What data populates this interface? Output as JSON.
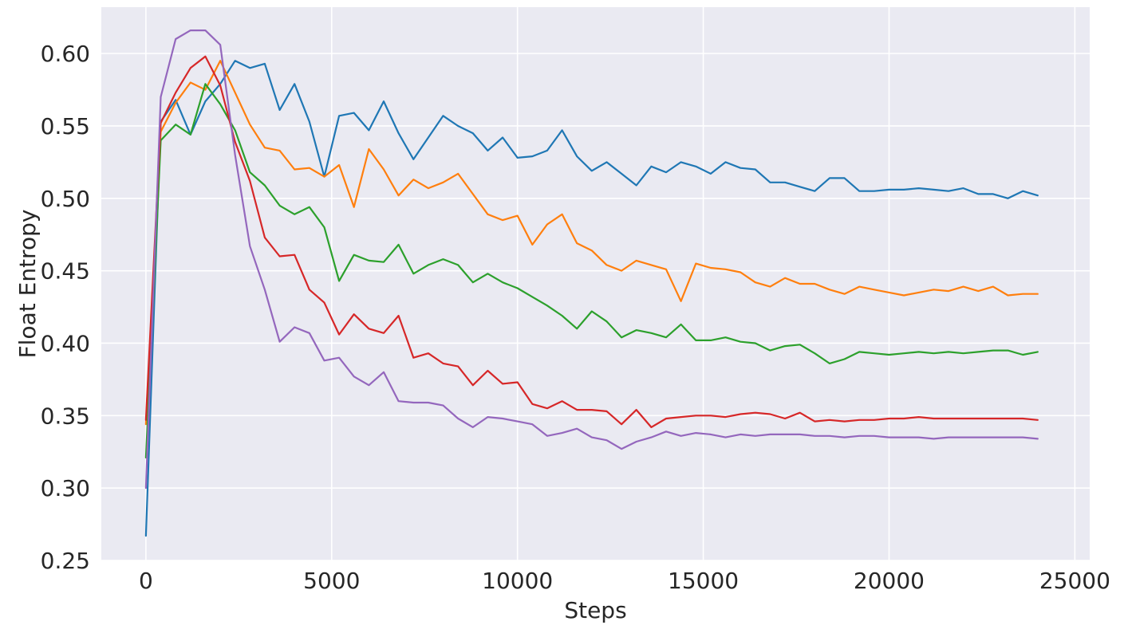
{
  "chart_data": {
    "type": "line",
    "xlabel": "Steps",
    "ylabel": "Float Entropy",
    "xlim": [
      -1200,
      25400
    ],
    "ylim": [
      0.25,
      0.632
    ],
    "xticks": [
      0,
      5000,
      10000,
      15000,
      20000,
      25000
    ],
    "xtick_labels": [
      "0",
      "5000",
      "10000",
      "15000",
      "20000",
      "25000"
    ],
    "yticks": [
      0.25,
      0.3,
      0.35,
      0.4,
      0.45,
      0.5,
      0.55,
      0.6
    ],
    "ytick_labels": [
      "0.25",
      "0.30",
      "0.35",
      "0.40",
      "0.45",
      "0.50",
      "0.55",
      "0.60"
    ],
    "grid": true,
    "background": "#eaeaf2",
    "grid_color": "#ffffff",
    "x": [
      0,
      400,
      800,
      1200,
      1600,
      2000,
      2400,
      2800,
      3200,
      3600,
      4000,
      4400,
      4800,
      5200,
      5600,
      6000,
      6400,
      6800,
      7200,
      7600,
      8000,
      8400,
      8800,
      9200,
      9600,
      10000,
      10400,
      10800,
      11200,
      11600,
      12000,
      12400,
      12800,
      13200,
      13600,
      14000,
      14400,
      14800,
      15200,
      15600,
      16000,
      16400,
      16800,
      17200,
      17600,
      18000,
      18400,
      18800,
      19200,
      19600,
      20000,
      20400,
      20800,
      21200,
      21600,
      22000,
      22400,
      22800,
      23200,
      23600,
      24000
    ],
    "series": [
      {
        "color": "#1f77b4",
        "values": [
          0.267,
          0.553,
          0.568,
          0.544,
          0.567,
          0.579,
          0.595,
          0.59,
          0.593,
          0.561,
          0.579,
          0.553,
          0.515,
          0.557,
          0.559,
          0.547,
          0.567,
          0.545,
          0.527,
          0.542,
          0.557,
          0.55,
          0.545,
          0.533,
          0.542,
          0.528,
          0.529,
          0.533,
          0.547,
          0.529,
          0.519,
          0.525,
          0.517,
          0.509,
          0.522,
          0.518,
          0.525,
          0.522,
          0.517,
          0.525,
          0.521,
          0.52,
          0.511,
          0.511,
          0.508,
          0.505,
          0.514,
          0.514,
          0.505,
          0.505,
          0.506,
          0.506,
          0.507,
          0.506,
          0.505,
          0.507,
          0.503,
          0.503,
          0.5,
          0.505,
          0.502
        ]
      },
      {
        "color": "#ff7f0e",
        "values": [
          0.344,
          0.546,
          0.566,
          0.58,
          0.575,
          0.595,
          0.573,
          0.551,
          0.535,
          0.533,
          0.52,
          0.521,
          0.515,
          0.523,
          0.494,
          0.534,
          0.52,
          0.502,
          0.513,
          0.507,
          0.511,
          0.517,
          0.503,
          0.489,
          0.485,
          0.488,
          0.468,
          0.482,
          0.489,
          0.469,
          0.464,
          0.454,
          0.45,
          0.457,
          0.454,
          0.451,
          0.429,
          0.455,
          0.452,
          0.451,
          0.449,
          0.442,
          0.439,
          0.445,
          0.441,
          0.441,
          0.437,
          0.434,
          0.439,
          0.437,
          0.435,
          0.433,
          0.435,
          0.437,
          0.436,
          0.439,
          0.436,
          0.439,
          0.433,
          0.434,
          0.434
        ]
      },
      {
        "color": "#2ca02c",
        "values": [
          0.321,
          0.54,
          0.551,
          0.544,
          0.579,
          0.565,
          0.547,
          0.518,
          0.509,
          0.495,
          0.489,
          0.494,
          0.48,
          0.443,
          0.461,
          0.457,
          0.456,
          0.468,
          0.448,
          0.454,
          0.458,
          0.454,
          0.442,
          0.448,
          0.442,
          0.438,
          0.432,
          0.426,
          0.419,
          0.41,
          0.422,
          0.415,
          0.404,
          0.409,
          0.407,
          0.404,
          0.413,
          0.402,
          0.402,
          0.404,
          0.401,
          0.4,
          0.395,
          0.398,
          0.399,
          0.393,
          0.386,
          0.389,
          0.394,
          0.393,
          0.392,
          0.393,
          0.394,
          0.393,
          0.394,
          0.393,
          0.394,
          0.395,
          0.395,
          0.392,
          0.394
        ]
      },
      {
        "color": "#d62728",
        "values": [
          0.347,
          0.552,
          0.573,
          0.59,
          0.598,
          0.578,
          0.539,
          0.512,
          0.473,
          0.46,
          0.461,
          0.437,
          0.428,
          0.406,
          0.42,
          0.41,
          0.407,
          0.419,
          0.39,
          0.393,
          0.386,
          0.384,
          0.371,
          0.381,
          0.372,
          0.373,
          0.358,
          0.355,
          0.36,
          0.354,
          0.354,
          0.353,
          0.344,
          0.354,
          0.342,
          0.348,
          0.349,
          0.35,
          0.35,
          0.349,
          0.351,
          0.352,
          0.351,
          0.348,
          0.352,
          0.346,
          0.347,
          0.346,
          0.347,
          0.347,
          0.348,
          0.348,
          0.349,
          0.348,
          0.348,
          0.348,
          0.348,
          0.348,
          0.348,
          0.348,
          0.347
        ]
      },
      {
        "color": "#9467bd",
        "values": [
          0.3,
          0.57,
          0.61,
          0.616,
          0.616,
          0.606,
          0.53,
          0.467,
          0.437,
          0.401,
          0.411,
          0.407,
          0.388,
          0.39,
          0.377,
          0.371,
          0.38,
          0.36,
          0.359,
          0.359,
          0.357,
          0.348,
          0.342,
          0.349,
          0.348,
          0.346,
          0.344,
          0.336,
          0.338,
          0.341,
          0.335,
          0.333,
          0.327,
          0.332,
          0.335,
          0.339,
          0.336,
          0.338,
          0.337,
          0.335,
          0.337,
          0.336,
          0.337,
          0.337,
          0.337,
          0.336,
          0.336,
          0.335,
          0.336,
          0.336,
          0.335,
          0.335,
          0.335,
          0.334,
          0.335,
          0.335,
          0.335,
          0.335,
          0.335,
          0.335,
          0.334
        ]
      }
    ]
  }
}
